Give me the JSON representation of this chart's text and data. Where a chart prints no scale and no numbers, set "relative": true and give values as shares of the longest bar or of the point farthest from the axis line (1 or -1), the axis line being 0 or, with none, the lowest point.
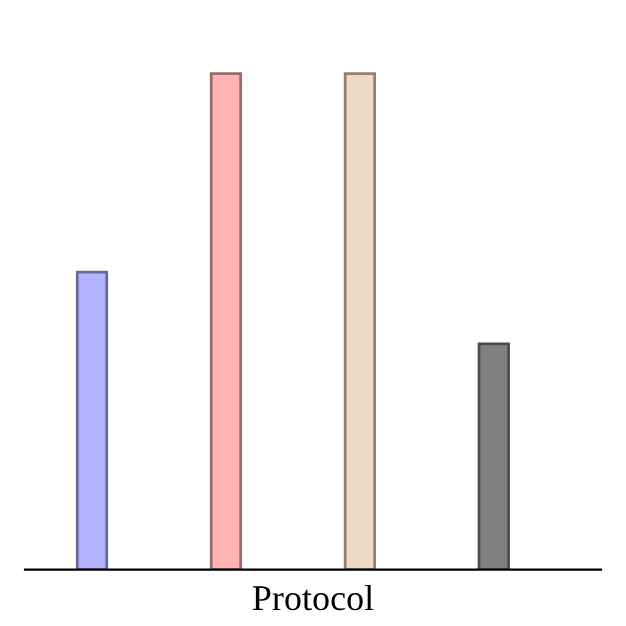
{
  "chart_data": {
    "type": "bar",
    "relative": true,
    "xlabel": "Protocol",
    "categories": [
      null,
      null,
      null,
      null
    ],
    "values": [
      0.6,
      1,
      1,
      0.455
    ],
    "colors": [
      "#b3b3ff",
      "#ffb3b3",
      "#ecd9c6",
      "#808080"
    ],
    "grid": false,
    "legend": false
  }
}
